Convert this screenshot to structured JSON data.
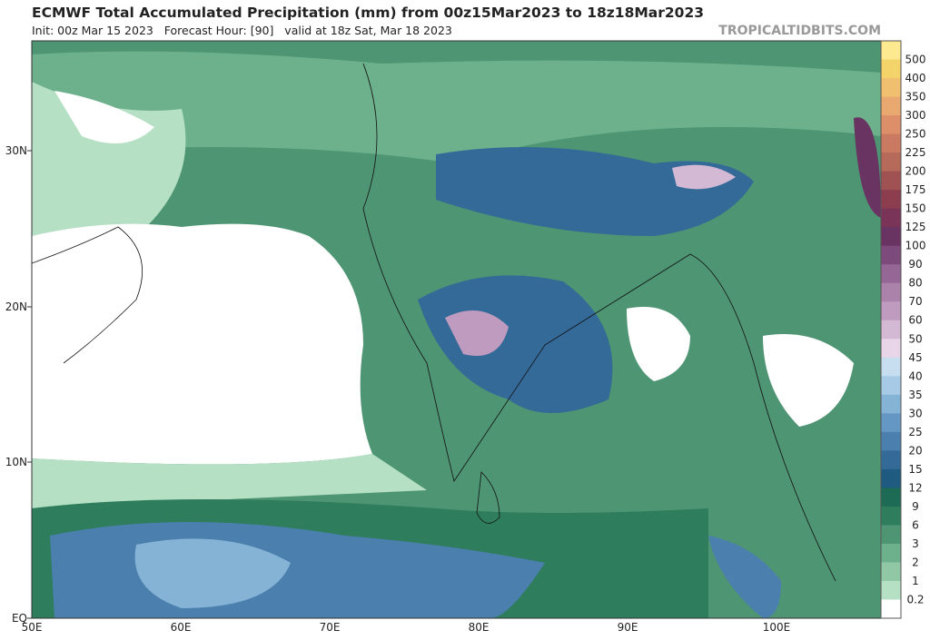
{
  "header": {
    "title": "ECMWF Total Accumulated Precipitation (mm) from 00z15Mar2023 to 18z18Mar2023",
    "subtitle": "Init: 00z Mar 15 2023   Forecast Hour: [90]   valid at 18z Sat, Mar 18 2023",
    "credit": "TROPICALTIDBITS.COM"
  },
  "map": {
    "lat_labels": [
      "30N",
      "20N",
      "10N",
      "EQ"
    ],
    "lon_labels": [
      "50E",
      "60E",
      "70E",
      "80E",
      "90E",
      "100E"
    ]
  },
  "legend": {
    "levels": [
      500,
      400,
      350,
      300,
      250,
      225,
      200,
      175,
      150,
      125,
      100,
      90,
      80,
      70,
      60,
      50,
      45,
      40,
      35,
      30,
      25,
      20,
      15,
      12,
      9,
      6,
      3,
      2,
      1,
      0.2
    ],
    "colors": [
      "#fde98f",
      "#f5d36b",
      "#f0c070",
      "#e8a870",
      "#dc8f68",
      "#c97a60",
      "#b56a5a",
      "#a05252",
      "#8c3e4f",
      "#7a3458",
      "#6a3462",
      "#7d4a7c",
      "#946794",
      "#aa82aa",
      "#bf9bbf",
      "#d4b9d4",
      "#e8d6e8",
      "#c6def0",
      "#a7cbe6",
      "#85b3d6",
      "#6497c3",
      "#4a7fae",
      "#346a98",
      "#1f5a80",
      "#1d6a55",
      "#2e7d5c",
      "#4e9573",
      "#6db08c",
      "#90c7a5",
      "#b5e0c4",
      "#ffffff"
    ]
  }
}
